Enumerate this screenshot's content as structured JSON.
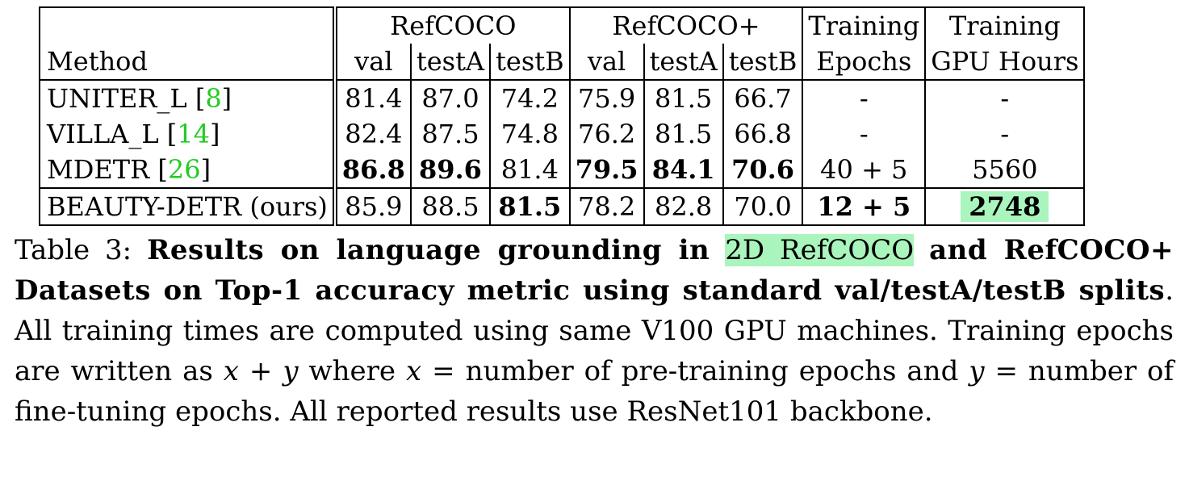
{
  "table": {
    "header": {
      "method_label": "Method",
      "group_refcoco": "RefCOCO",
      "group_refcocoplus": "RefCOCO+",
      "training_top_1": "Training",
      "training_bottom_1": "Epochs",
      "training_top_2": "Training",
      "training_bottom_2": "GPU Hours",
      "sub_columns": [
        "val",
        "testA",
        "testB",
        "val",
        "testA",
        "testB"
      ]
    },
    "rows": [
      {
        "method": "UNITER_L",
        "cite": "8",
        "values": [
          "81.4",
          "87.0",
          "74.2",
          "75.9",
          "81.5",
          "66.7"
        ],
        "epochs": "-",
        "gpu_hours": "-"
      },
      {
        "method": "VILLA_L",
        "cite": "14",
        "values": [
          "82.4",
          "87.5",
          "74.8",
          "76.2",
          "81.5",
          "66.8"
        ],
        "epochs": "-",
        "gpu_hours": "-"
      },
      {
        "method": "MDETR",
        "cite": "26",
        "values": [
          "86.8",
          "89.6",
          "81.4",
          "79.5",
          "84.1",
          "70.6"
        ],
        "epochs": "40 + 5",
        "gpu_hours": "5560"
      },
      {
        "method": "BEAUTY-DETR (ours)",
        "cite": "",
        "values": [
          "85.9",
          "88.5",
          "81.5",
          "78.2",
          "82.8",
          "70.0"
        ],
        "epochs": "12 + 5",
        "gpu_hours": "2748"
      }
    ]
  },
  "caption": {
    "label": "Table 3:",
    "bold_1": "Results on language grounding in",
    "highlight": "2D RefCOCO",
    "bold_2": "and RefCOCO+ Datasets on Top-1 accuracy metric using standard val/testA/testB splits",
    "text_1": ". All training times are computed using same V100 GPU machines. Training epochs are written as",
    "math_1": "x",
    "plus": "+",
    "math_2": "y",
    "text_2": "where",
    "math_3": "x",
    "text_3": "= number of pre-training epochs and",
    "math_4": "y",
    "text_4": "= number of fine-tuning epochs. All reported results use ResNet101 backbone."
  },
  "colors": {
    "citation": "#22cc22",
    "highlight": "#aaf5bd"
  }
}
